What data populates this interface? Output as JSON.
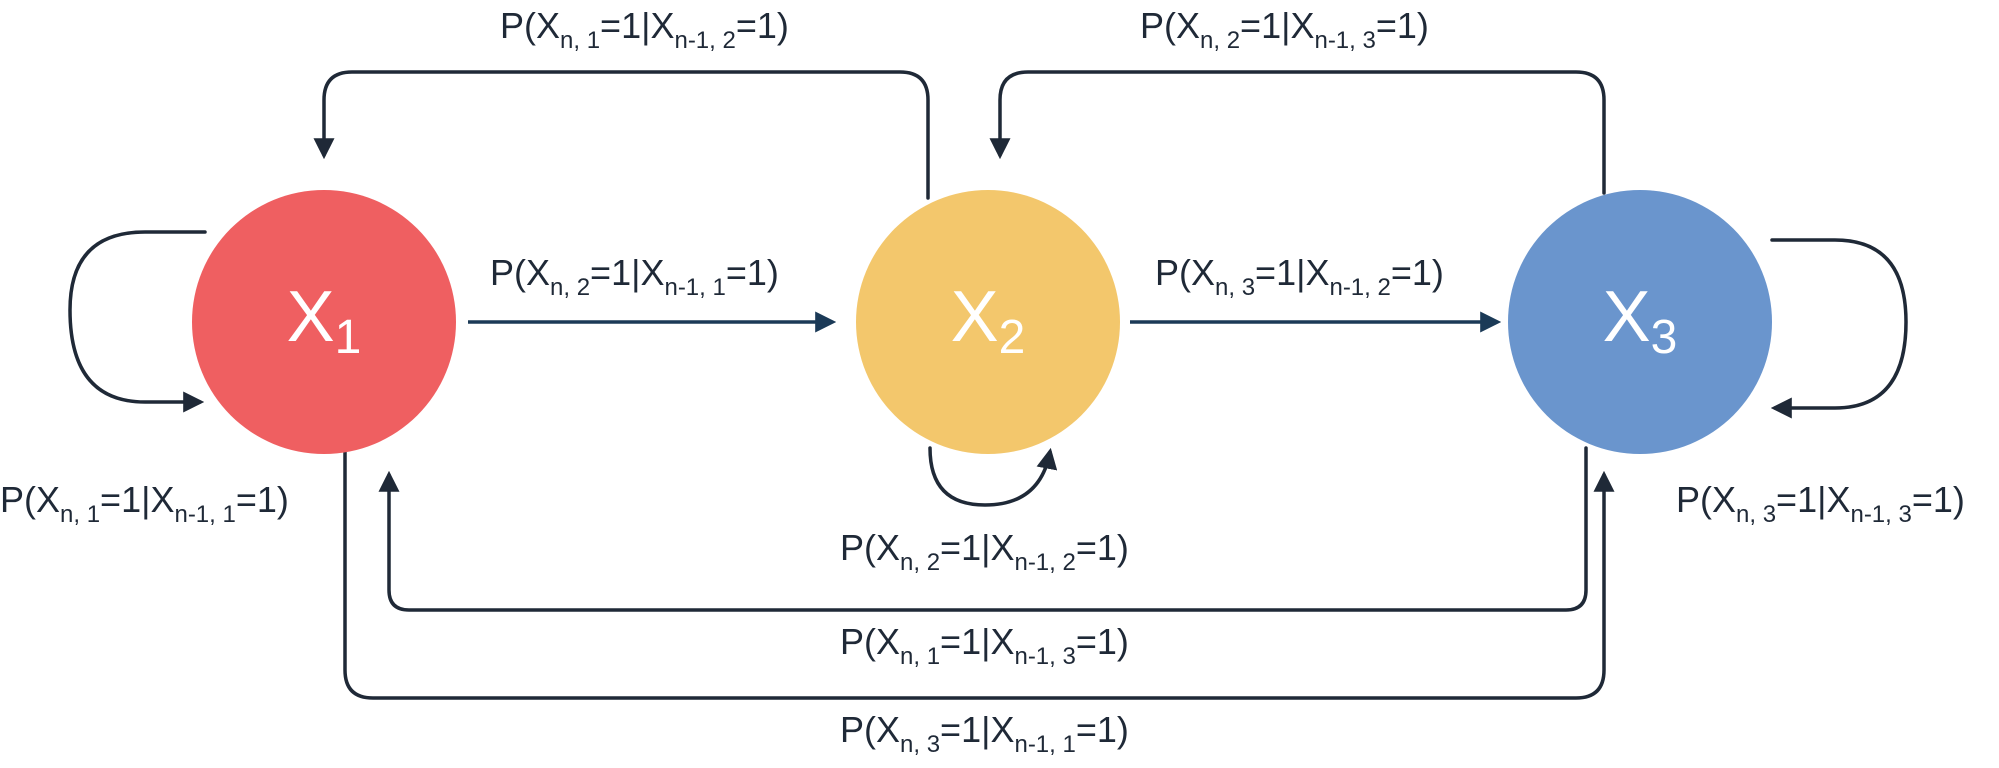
{
  "nodes": [
    {
      "id": "x1",
      "letter": "X",
      "index": "1",
      "color": "#ef5f61"
    },
    {
      "id": "x2",
      "letter": "X",
      "index": "2",
      "color": "#f3c76c"
    },
    {
      "id": "x3",
      "letter": "X",
      "index": "3",
      "color": "#6a95cd"
    }
  ],
  "edges": {
    "x2_to_x1": {
      "p": "P(X",
      "a": "n, 1",
      "m": "=1|X",
      "b": "n-1, 2",
      "e": "=1)"
    },
    "x3_to_x2": {
      "p": "P(X",
      "a": "n, 2",
      "m": "=1|X",
      "b": "n-1, 3",
      "e": "=1)"
    },
    "x1_to_x2": {
      "p": "P(X",
      "a": "n, 2",
      "m": "=1|X",
      "b": "n-1, 1",
      "e": "=1)"
    },
    "x2_to_x3": {
      "p": "P(X",
      "a": "n, 3",
      "m": "=1|X",
      "b": "n-1, 2",
      "e": "=1)"
    },
    "x1_self": {
      "p": "P(X",
      "a": "n, 1",
      "m": "=1|X",
      "b": "n-1, 1",
      "e": "=1)"
    },
    "x3_self": {
      "p": "P(X",
      "a": "n, 3",
      "m": "=1|X",
      "b": "n-1, 3",
      "e": "=1)"
    },
    "x2_self": {
      "p": "P(X",
      "a": "n, 2",
      "m": "=1|X",
      "b": "n-1, 2",
      "e": "=1)"
    },
    "x3_to_x1": {
      "p": "P(X",
      "a": "n, 1",
      "m": "=1|X",
      "b": "n-1, 3",
      "e": "=1)"
    },
    "x1_to_x3": {
      "p": "P(X",
      "a": "n, 3",
      "m": "=1|X",
      "b": "n-1, 1",
      "e": "=1)"
    }
  }
}
